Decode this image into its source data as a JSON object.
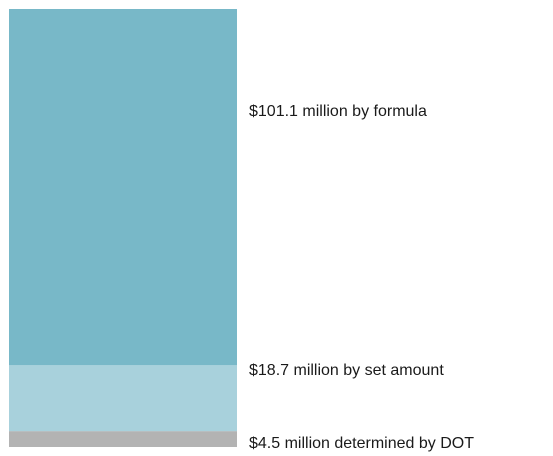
{
  "chart_data": {
    "type": "bar",
    "stacked": true,
    "orientation": "vertical",
    "title": "",
    "xlabel": "",
    "ylabel": "",
    "unit": "$ million",
    "total": 124.3,
    "grid": false,
    "legend": "none",
    "segments": [
      {
        "value": 4.5,
        "label": "$4.5 million determined by DOT",
        "color": "#b3b3b3"
      },
      {
        "value": 18.7,
        "label": "$18.7 million by set amount",
        "color": "#a8d1dc"
      },
      {
        "value": 101.1,
        "label": "$101.1 million by formula",
        "color": "#78b8c8"
      }
    ]
  }
}
